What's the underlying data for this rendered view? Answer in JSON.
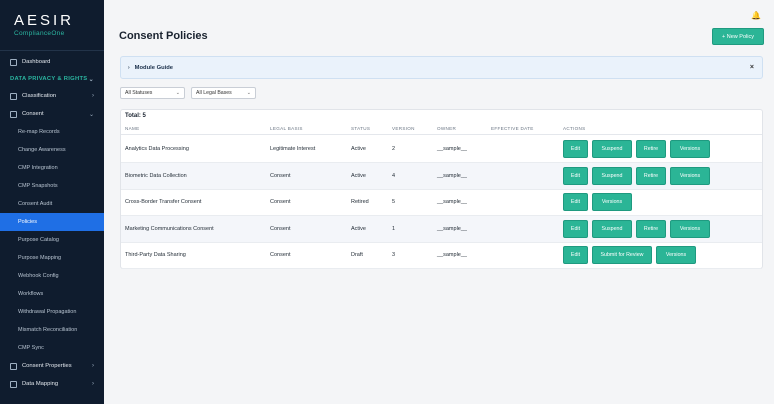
{
  "logo": {
    "name": "AESIR",
    "sub": "ComplianceOne"
  },
  "sidebar": {
    "dashboard": "Dashboard",
    "section": "DATA PRIVACY & RIGHTS",
    "classification": "Classification",
    "consent": "Consent",
    "sub_items": [
      "Re-map Records",
      "Change Awareness",
      "CMP Integration",
      "CMP Snapshots",
      "Consent Audit",
      "Policies",
      "Purpose Catalog",
      "Purpose Mapping",
      "Webhook Config",
      "Workflows",
      "Withdrawal Propagation",
      "Mismatch Reconciliation",
      "CMP Sync"
    ],
    "active_item": "Policies",
    "consent_properties": "Consent Properties",
    "data_mapping": "Data Mapping"
  },
  "header": {
    "title": "Consent Policies",
    "new_button": "+ New Policy"
  },
  "guide": {
    "label": "Module Guide"
  },
  "filters": {
    "status": "All Statuses",
    "legal": "All Legal Bases"
  },
  "table": {
    "total": "Total: 5",
    "columns": [
      "NAME",
      "LEGAL BASIS",
      "STATUS",
      "VERSION",
      "OWNER",
      "EFFECTIVE DATE",
      "ACTIONS"
    ],
    "rows": [
      {
        "name": "Analytics Data Processing",
        "basis": "Legitimate Interest",
        "status": "Active",
        "version": "2",
        "owner": "__sample__",
        "date": "",
        "actions": [
          "Edit",
          "Suspend",
          "Retire",
          "Versions"
        ]
      },
      {
        "name": "Biometric Data Collection",
        "basis": "Consent",
        "status": "Active",
        "version": "4",
        "owner": "__sample__",
        "date": "",
        "actions": [
          "Edit",
          "Suspend",
          "Retire",
          "Versions"
        ]
      },
      {
        "name": "Cross-Border Transfer Consent",
        "basis": "Consent",
        "status": "Retired",
        "version": "5",
        "owner": "__sample__",
        "date": "",
        "actions": [
          "Edit",
          "Versions"
        ]
      },
      {
        "name": "Marketing Communications Consent",
        "basis": "Consent",
        "status": "Active",
        "version": "1",
        "owner": "__sample__",
        "date": "",
        "actions": [
          "Edit",
          "Suspend",
          "Retire",
          "Versions"
        ]
      },
      {
        "name": "Third-Party Data Sharing",
        "basis": "Consent",
        "status": "Draft",
        "version": "3",
        "owner": "__sample__",
        "date": "",
        "actions": [
          "Edit",
          "Submit for Review",
          "Versions"
        ]
      }
    ]
  }
}
